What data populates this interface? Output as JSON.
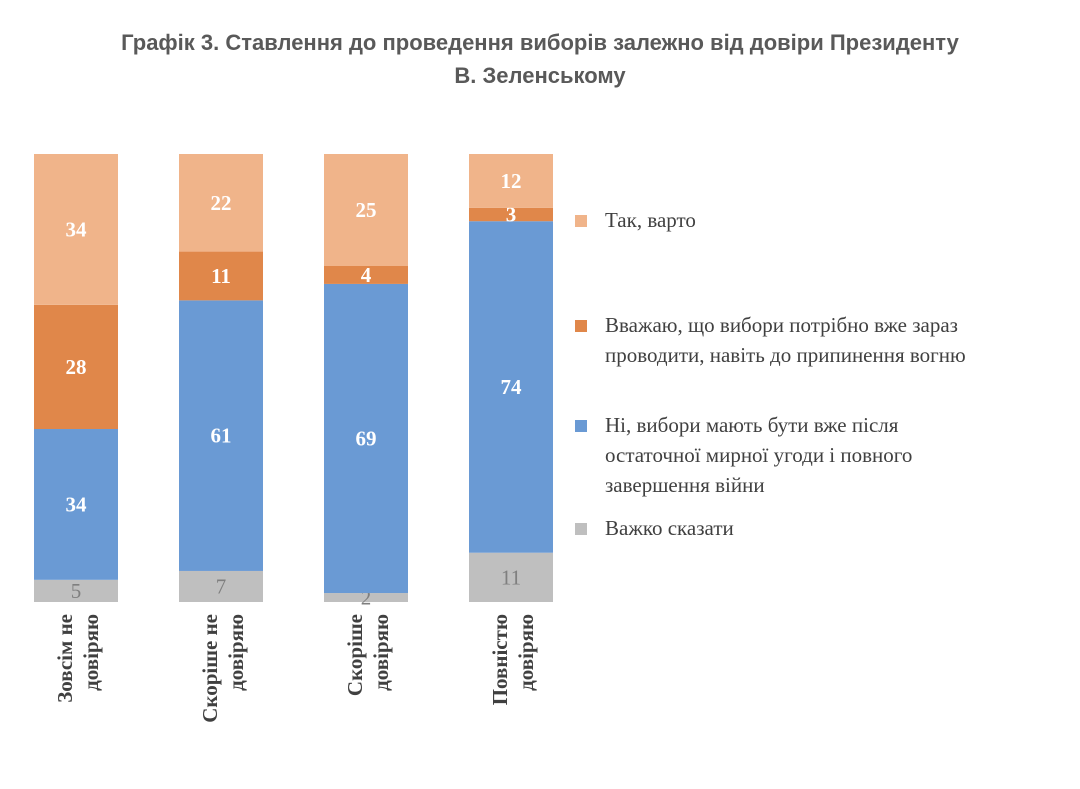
{
  "title_line1": "Графік 3. Ставлення до проведення виборів залежно від довіри Президенту",
  "title_line2": "В. Зеленському",
  "chart_data": {
    "type": "bar",
    "stacked": true,
    "percent_stacked": true,
    "categories": [
      "Зовсім не довіряю",
      "Скоріше не довіряю",
      "Скоріше довіряю",
      "Повністю довіряю"
    ],
    "category_lines": [
      [
        "Зовсім не",
        "довіряю"
      ],
      [
        "Скоріше не",
        "довіряю"
      ],
      [
        "Скоріше",
        "довіряю"
      ],
      [
        "Повністю",
        "довіряю"
      ]
    ],
    "series": [
      {
        "name": "Важко сказати",
        "values": [
          5,
          7,
          2,
          11
        ],
        "color": "#bfbfbf",
        "label_color": "#7f7f7f"
      },
      {
        "name": "Ні, вибори мають бути вже після остаточної мирної угоди і повного завершення війни",
        "values": [
          34,
          61,
          69,
          74
        ],
        "color": "#6a9ad4",
        "label_color": "#ffffff"
      },
      {
        "name": "Вважаю, що вибори потрібно вже зараз проводити, навіть до припинення вогню",
        "values": [
          28,
          11,
          4,
          3
        ],
        "color": "#e0874a",
        "label_color": "#ffffff"
      },
      {
        "name": "Так, варто",
        "values": [
          34,
          22,
          25,
          12
        ],
        "color": "#f0b48a",
        "label_color": "#ffffff"
      }
    ],
    "legend": {
      "position": "right",
      "items": [
        {
          "lines": [
            "Так, варто"
          ],
          "color": "#f0b48a"
        },
        {
          "lines": [
            "Вважаю, що вибори потрібно вже зараз",
            "проводити, навіть до припинення вогню"
          ],
          "color": "#e0874a"
        },
        {
          "lines": [
            "Ні, вибори мають бути вже після",
            "остаточної мирної угоди і повного",
            "завершення війни"
          ],
          "color": "#6a9ad4"
        },
        {
          "lines": [
            "Важко сказати"
          ],
          "color": "#bfbfbf"
        }
      ]
    },
    "grid": false
  }
}
